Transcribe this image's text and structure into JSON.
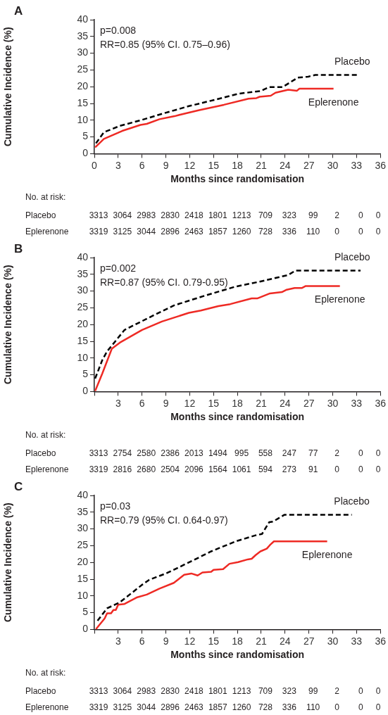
{
  "chart_data": [
    {
      "type": "line",
      "title": "A",
      "xlabel": "Months since randomisation",
      "ylabel": "Cumulative Incidence (%)",
      "xlim": [
        0,
        36
      ],
      "ylim": [
        0,
        40
      ],
      "xticks": [
        0,
        3,
        6,
        9,
        12,
        15,
        18,
        21,
        24,
        27,
        30,
        33,
        36
      ],
      "yticks": [
        0,
        5,
        10,
        15,
        20,
        25,
        30,
        35,
        40
      ],
      "legend": false,
      "grid": false,
      "marker": "none",
      "series": [
        {
          "name": "Placebo",
          "color": "#000000",
          "line_style": "dashed",
          "x": [
            0.2,
            1.2,
            3.2,
            6,
            8.8,
            11.9,
            15,
            18.1,
            20.9,
            22,
            23.7,
            25.6,
            26.9,
            27.8,
            33.1
          ],
          "values": [
            3.1,
            6.4,
            8.3,
            10.1,
            12.1,
            14.2,
            16,
            17.9,
            18.7,
            19.9,
            19.9,
            22.7,
            23,
            23.5,
            23.5
          ]
        },
        {
          "name": "Eplerenone",
          "color": "#ee2a24",
          "line_style": "solid",
          "x": [
            0.1,
            1.2,
            3.5,
            5.8,
            6.6,
            8.2,
            10.1,
            10.7,
            13.2,
            16.3,
            19.4,
            20.4,
            20.8,
            22.2,
            22.8,
            24.4,
            25.5,
            25.8,
            30.1
          ],
          "values": [
            1.9,
            4.4,
            6.8,
            8.6,
            8.9,
            10.3,
            11.2,
            11.6,
            13,
            14.6,
            16.4,
            16.6,
            17,
            17.3,
            18.2,
            19.1,
            18.8,
            19.4,
            19.4
          ]
        }
      ],
      "annotations": [
        "p=0.008",
        "RR=0.85 (95% CI. 0.75–0.96)",
        "No. at risk:",
        "Placebo",
        "3313",
        "3064",
        "2983",
        "2830",
        "2418",
        "1801",
        "1213",
        "709",
        "323",
        "99",
        "2",
        "0",
        "0",
        "Eplerenone",
        "3319",
        "3125",
        "3044",
        "2896",
        "2463",
        "1857",
        "1260",
        "728",
        "336",
        "110",
        "0",
        "0",
        "0"
      ]
    },
    {
      "type": "line",
      "title": "B",
      "xlabel": "Months since randomisation",
      "ylabel": "Cumulative Incidence (%)",
      "xlim": [
        0,
        36
      ],
      "ylim": [
        0,
        40
      ],
      "xticks": [
        {
          "value": 0,
          "label": null
        },
        3,
        6,
        9,
        12,
        15,
        18,
        21,
        24,
        27,
        30,
        33,
        36
      ],
      "yticks": [
        0,
        5,
        10,
        15,
        20,
        25,
        30,
        35,
        40
      ],
      "legend": false,
      "grid": false,
      "marker": "none",
      "series": [
        {
          "name": "Placebo",
          "color": "#000000",
          "line_style": "dashed",
          "x": [
            0.1,
            1,
            1.6,
            3.8,
            6.9,
            10,
            14,
            17.7,
            20.8,
            24.4,
            25.3,
            33.5
          ],
          "values": [
            3.9,
            9.4,
            12,
            18.4,
            22.1,
            25.7,
            28.7,
            31.3,
            32.8,
            34.8,
            36.1,
            36.1
          ]
        },
        {
          "name": "Eplerenone",
          "color": "#ee2a24",
          "line_style": "solid",
          "x": [
            0.1,
            1,
            2.2,
            3.2,
            6,
            8.5,
            11.9,
            13.4,
            15.6,
            17.1,
            19.8,
            20.5,
            22.1,
            23.6,
            24.2,
            25.2,
            26.1,
            26.6,
            30.9
          ],
          "values": [
            0.2,
            5.4,
            12.8,
            14.6,
            18.4,
            20.9,
            23.5,
            24.2,
            25.5,
            26.1,
            27.8,
            27.8,
            29.3,
            29.7,
            30.4,
            30.9,
            30.9,
            31.5,
            31.5
          ]
        }
      ],
      "annotations": [
        "p=0.002",
        "RR=0.87 (95% CI. 0.79-0.95)",
        "No. at risk:",
        "Placebo",
        "3313",
        "2754",
        "2580",
        "2386",
        "2013",
        "1494",
        "995",
        "558",
        "247",
        "77",
        "2",
        "0",
        "0",
        "Eplerenone",
        "3319",
        "2816",
        "2680",
        "2504",
        "2096",
        "1564",
        "1061",
        "594",
        "273",
        "91",
        "0",
        "0",
        "0"
      ]
    },
    {
      "type": "line",
      "title": "C",
      "xlabel": "Months since randomisation",
      "ylabel": "Cumulative Incidence (%)",
      "xlim": [
        0,
        36
      ],
      "ylim": [
        0,
        40
      ],
      "xticks": [
        {
          "value": 0,
          "label": null
        },
        3,
        6,
        9,
        12,
        15,
        18,
        21,
        24,
        27,
        30,
        33,
        36
      ],
      "yticks": [
        0,
        5,
        10,
        15,
        20,
        25,
        30,
        35,
        40
      ],
      "legend": false,
      "grid": false,
      "marker": "none",
      "series": [
        {
          "name": "Placebo",
          "color": "#000000",
          "line_style": "dashed",
          "x": [
            0.4,
            1.6,
            3.2,
            6,
            6.9,
            9.1,
            11.9,
            14.7,
            17.8,
            20.3,
            21.1,
            22,
            22.5,
            23.9,
            32.4
          ],
          "values": [
            2.6,
            6.3,
            8.1,
            13.3,
            14.8,
            16.8,
            20,
            23.3,
            26.3,
            28.1,
            28.5,
            32,
            32.2,
            34.2,
            34.2
          ]
        },
        {
          "name": "Eplerenone",
          "color": "#ee2a24",
          "line_style": "solid",
          "x": [
            0.2,
            1.3,
            1.6,
            2.1,
            2.4,
            2.7,
            3,
            3.8,
            5.4,
            6.6,
            8.2,
            10,
            11.3,
            12.2,
            13,
            13.6,
            14.7,
            15,
            16.2,
            17,
            18.1,
            19.3,
            19.8,
            20.3,
            20.9,
            21.7,
            22.1,
            22.6,
            29.3
          ],
          "values": [
            0.1,
            3.3,
            4.8,
            4.8,
            5.8,
            5.8,
            7.4,
            7.6,
            9.6,
            10.4,
            12.2,
            13.9,
            16.3,
            16.7,
            16.1,
            17,
            17.2,
            17.8,
            18,
            19.6,
            20.1,
            20.9,
            21.1,
            22.2,
            23.3,
            24.1,
            25.2,
            26.3,
            26.3
          ]
        }
      ],
      "annotations": [
        "p=0.03",
        "RR=0.79 (95% CI. 0.64-0.97)",
        "No. at risk:",
        "Placebo",
        "3313",
        "3064",
        "2983",
        "2830",
        "2418",
        "1801",
        "1213",
        "709",
        "323",
        "99",
        "2",
        "0",
        "0",
        "Eplerenone",
        "3319",
        "3125",
        "3044",
        "2896",
        "2463",
        "1857",
        "1260",
        "728",
        "336",
        "110",
        "0",
        "0",
        "0"
      ]
    }
  ]
}
